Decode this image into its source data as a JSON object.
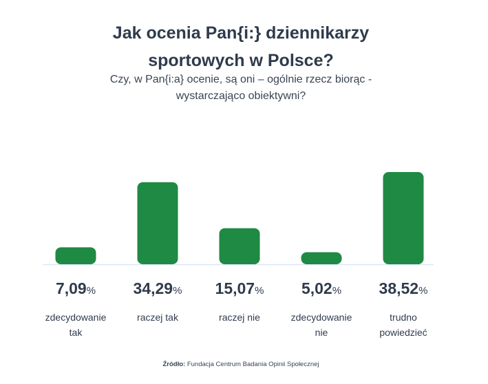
{
  "chart_data": {
    "type": "bar",
    "title_lines": [
      "Jak ocenia Pan{i:} dziennikarzy",
      "sportowych w Polsce?"
    ],
    "subtitle_lines": [
      "Czy, w Pan{i:a} ocenie, są oni – ogólnie rzecz biorąc -",
      "wystarczająco obiektywni?"
    ],
    "categories": [
      [
        "zdecydowanie",
        "tak"
      ],
      [
        "raczej tak"
      ],
      [
        "raczej nie"
      ],
      [
        "zdecydowanie",
        "nie"
      ],
      [
        "trudno",
        "powiedzieć"
      ]
    ],
    "values": [
      7.09,
      34.29,
      15.07,
      5.02,
      38.52
    ],
    "value_labels": [
      "7,09",
      "34,29",
      "15,07",
      "5,02",
      "38,52"
    ],
    "unit": "%",
    "ylim": [
      0,
      40
    ],
    "grid": false,
    "bar_color": "#1e8a43",
    "baseline_color": "#dbe7fb"
  },
  "source": {
    "label": "Źródło:",
    "text": "Fundacja Centrum Badania Opinii Społecznej"
  }
}
